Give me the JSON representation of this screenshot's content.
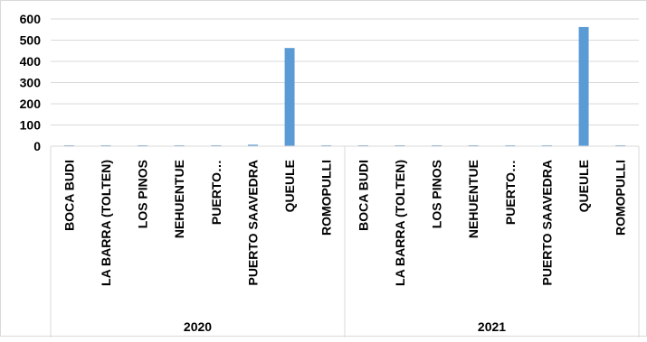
{
  "chart_data": {
    "type": "bar",
    "groups": [
      {
        "label": "2020",
        "categories": [
          "BOCA BUDI",
          "LA BARRA (TOLTEN)",
          "LOS PINOS",
          "NEHUENTUE",
          "PUERTO…",
          "PUERTO SAAVEDRA",
          "QUEULE",
          "ROMOPULLI"
        ],
        "values": [
          0,
          0,
          0,
          0,
          0,
          7,
          463,
          0
        ]
      },
      {
        "label": "2021",
        "categories": [
          "BOCA BUDI",
          "LA BARRA (TOLTEN)",
          "LOS PINOS",
          "NEHUENTUE",
          "PUERTO…",
          "PUERTO SAAVEDRA",
          "QUEULE",
          "ROMOPULLI"
        ],
        "values": [
          0,
          0,
          0,
          0,
          0,
          0,
          562,
          0
        ]
      }
    ],
    "y_ticks": [
      "600",
      "500",
      "400",
      "300",
      "200",
      "100",
      "0"
    ],
    "ylim": [
      0,
      600
    ],
    "grid": true,
    "legend": "none",
    "bar_color": "#5b9bd5",
    "grid_color": "#d9d9d9",
    "title": "",
    "xlabel": "",
    "ylabel": ""
  }
}
